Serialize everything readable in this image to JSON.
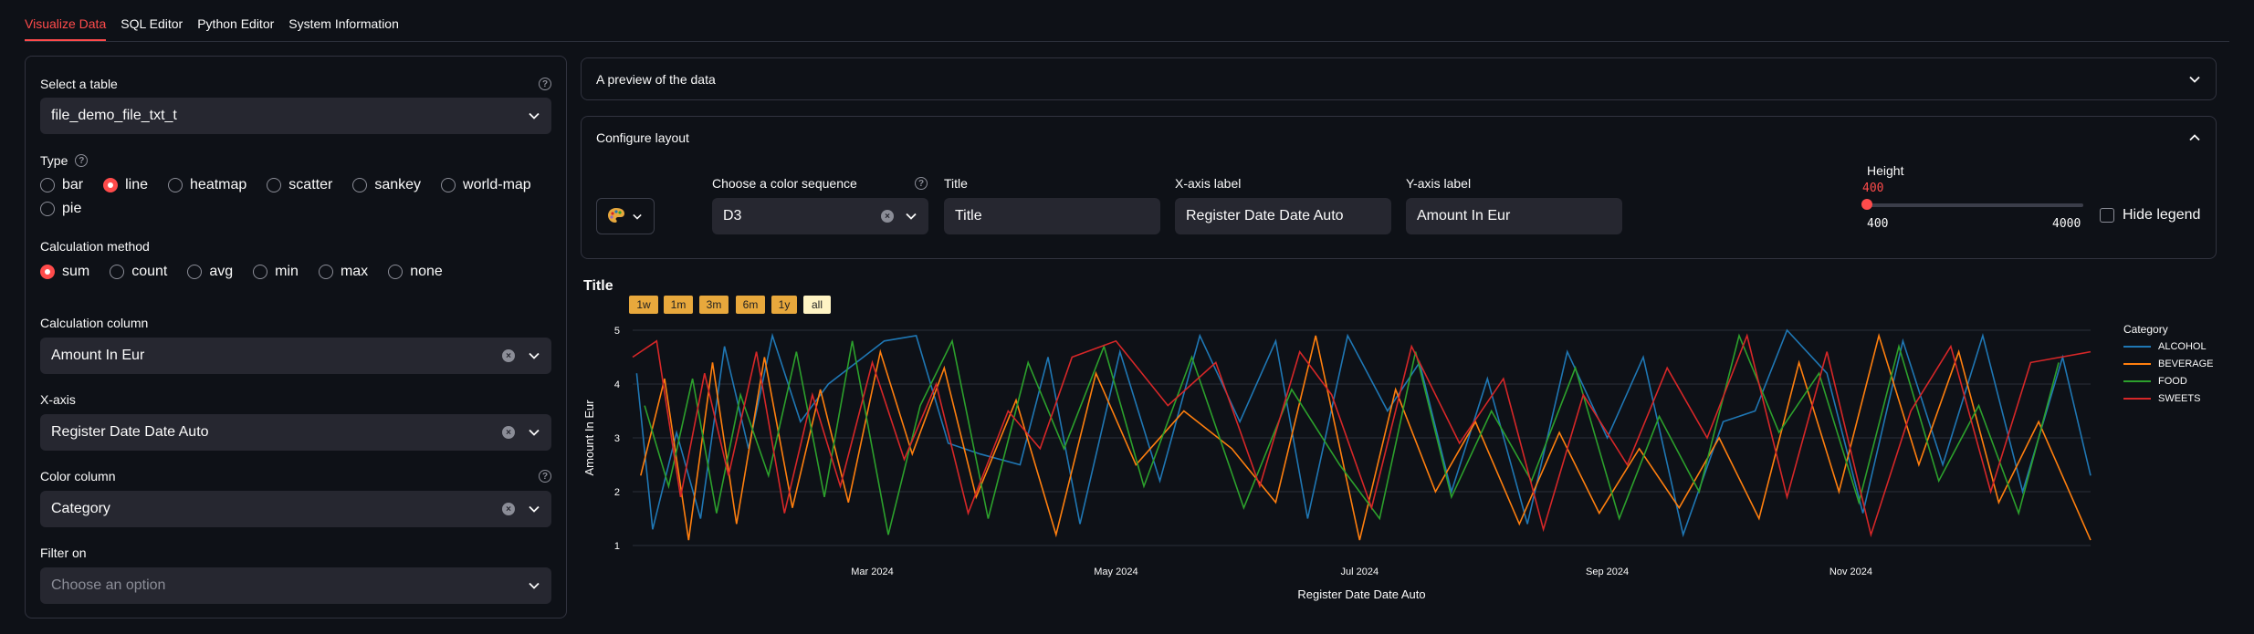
{
  "tabs": [
    {
      "label": "Visualize Data",
      "active": true
    },
    {
      "label": "SQL Editor",
      "active": false
    },
    {
      "label": "Python Editor",
      "active": false
    },
    {
      "label": "System Information",
      "active": false
    }
  ],
  "left": {
    "table": {
      "label": "Select a table",
      "value": "file_demo_file_txt_t"
    },
    "type": {
      "label": "Type",
      "options": [
        "bar",
        "line",
        "heatmap",
        "scatter",
        "sankey",
        "world-map",
        "pie"
      ],
      "selected": "line"
    },
    "calc_method": {
      "label": "Calculation method",
      "options": [
        "sum",
        "count",
        "avg",
        "min",
        "max",
        "none"
      ],
      "selected": "sum"
    },
    "calc_column": {
      "label": "Calculation column",
      "value": "Amount In Eur"
    },
    "x_axis": {
      "label": "X-axis",
      "value": "Register Date Date Auto"
    },
    "color_column": {
      "label": "Color column",
      "value": "Category"
    },
    "filter_on": {
      "label": "Filter on",
      "placeholder": "Choose an option"
    }
  },
  "preview": {
    "label": "A preview of the data"
  },
  "configure": {
    "label": "Configure layout",
    "color_seq_label": "Choose a color sequence",
    "color_seq_value": "D3",
    "title_label": "Title",
    "title_value": "Title",
    "xlabel_label": "X-axis label",
    "xlabel_value": "Register Date Date Auto",
    "ylabel_label": "Y-axis label",
    "ylabel_value": "Amount In Eur",
    "height_label": "Height",
    "height_value": "400",
    "height_min": "400",
    "height_max": "4000",
    "height_fraction": 0,
    "hide_legend_label": "Hide legend"
  },
  "chart": {
    "title": "Title",
    "range_buttons": [
      {
        "label": "1w",
        "active": false
      },
      {
        "label": "1m",
        "active": false
      },
      {
        "label": "3m",
        "active": false
      },
      {
        "label": "6m",
        "active": false
      },
      {
        "label": "1y",
        "active": false
      },
      {
        "label": "all",
        "active": true
      }
    ],
    "legend_title": "Category"
  },
  "chart_data": {
    "type": "line",
    "title": "Title",
    "xlabel": "Register Date Date Auto",
    "ylabel": "Amount In Eur",
    "x_range": [
      "2024-01-01",
      "2024-12-31"
    ],
    "ylim": [
      1,
      5
    ],
    "y_ticks": [
      1,
      2,
      3,
      4,
      5
    ],
    "x_ticks": [
      {
        "date": "2024-03-01",
        "label": "Mar 2024"
      },
      {
        "date": "2024-05-01",
        "label": "May 2024"
      },
      {
        "date": "2024-07-01",
        "label": "Jul 2024"
      },
      {
        "date": "2024-09-01",
        "label": "Sep 2024"
      },
      {
        "date": "2024-11-01",
        "label": "Nov 2024"
      }
    ],
    "legend": "right",
    "series": [
      {
        "name": "ALCOHOL",
        "color": "#1f77b4",
        "x": [
          "2024-01-02",
          "2024-01-06",
          "2024-01-12",
          "2024-01-18",
          "2024-01-24",
          "2024-01-30",
          "2024-02-05",
          "2024-02-12",
          "2024-02-19",
          "2024-02-26",
          "2024-03-04",
          "2024-03-12",
          "2024-03-20",
          "2024-03-28",
          "2024-04-07",
          "2024-04-14",
          "2024-04-22",
          "2024-05-02",
          "2024-05-12",
          "2024-05-22",
          "2024-06-01",
          "2024-06-10",
          "2024-06-18",
          "2024-06-28",
          "2024-07-08",
          "2024-07-16",
          "2024-07-24",
          "2024-08-02",
          "2024-08-12",
          "2024-08-22",
          "2024-09-01",
          "2024-09-10",
          "2024-09-20",
          "2024-09-30",
          "2024-10-08",
          "2024-10-16",
          "2024-10-26",
          "2024-11-04",
          "2024-11-14",
          "2024-11-24",
          "2024-12-04",
          "2024-12-14",
          "2024-12-24",
          "2024-12-31"
        ],
        "values": [
          4.2,
          1.3,
          3.1,
          1.5,
          4.7,
          2.8,
          4.9,
          3.3,
          4.0,
          4.4,
          4.8,
          4.9,
          2.9,
          2.7,
          2.5,
          4.5,
          1.4,
          4.6,
          2.2,
          4.9,
          3.3,
          4.8,
          1.5,
          4.9,
          3.5,
          4.4,
          2.0,
          4.1,
          1.4,
          4.6,
          3.0,
          4.5,
          1.2,
          3.3,
          3.5,
          5.0,
          4.2,
          1.6,
          4.8,
          2.5,
          4.9,
          2.0,
          4.5,
          2.3
        ]
      },
      {
        "name": "BEVERAGE",
        "color": "#ff7f0e",
        "x": [
          "2024-01-03",
          "2024-01-09",
          "2024-01-15",
          "2024-01-21",
          "2024-01-27",
          "2024-02-03",
          "2024-02-10",
          "2024-02-17",
          "2024-02-24",
          "2024-03-03",
          "2024-03-11",
          "2024-03-19",
          "2024-03-27",
          "2024-04-06",
          "2024-04-16",
          "2024-04-26",
          "2024-05-06",
          "2024-05-18",
          "2024-05-30",
          "2024-06-10",
          "2024-06-20",
          "2024-07-01",
          "2024-07-10",
          "2024-07-20",
          "2024-07-30",
          "2024-08-10",
          "2024-08-20",
          "2024-08-30",
          "2024-09-09",
          "2024-09-19",
          "2024-09-29",
          "2024-10-09",
          "2024-10-19",
          "2024-10-29",
          "2024-11-08",
          "2024-11-18",
          "2024-11-28",
          "2024-12-08",
          "2024-12-18",
          "2024-12-31"
        ],
        "values": [
          2.3,
          4.1,
          1.1,
          4.4,
          1.4,
          4.5,
          1.7,
          3.9,
          1.8,
          4.6,
          2.7,
          4.3,
          1.9,
          3.7,
          1.2,
          4.2,
          2.5,
          3.5,
          2.8,
          1.8,
          4.9,
          1.1,
          3.9,
          2.0,
          3.3,
          1.4,
          3.1,
          1.6,
          2.8,
          1.7,
          3.0,
          1.5,
          4.4,
          2.0,
          4.9,
          2.5,
          4.6,
          1.8,
          3.3,
          1.1
        ]
      },
      {
        "name": "FOOD",
        "color": "#2ca02c",
        "x": [
          "2024-01-04",
          "2024-01-10",
          "2024-01-16",
          "2024-01-22",
          "2024-01-28",
          "2024-02-04",
          "2024-02-11",
          "2024-02-18",
          "2024-02-25",
          "2024-03-05",
          "2024-03-13",
          "2024-03-21",
          "2024-03-30",
          "2024-04-09",
          "2024-04-18",
          "2024-04-28",
          "2024-05-08",
          "2024-05-20",
          "2024-06-02",
          "2024-06-14",
          "2024-06-26",
          "2024-07-06",
          "2024-07-15",
          "2024-07-24",
          "2024-08-03",
          "2024-08-13",
          "2024-08-24",
          "2024-09-04",
          "2024-09-14",
          "2024-09-24",
          "2024-10-04",
          "2024-10-14",
          "2024-10-24",
          "2024-11-03",
          "2024-11-13",
          "2024-11-23",
          "2024-12-03",
          "2024-12-13",
          "2024-12-23"
        ],
        "values": [
          3.6,
          2.1,
          4.1,
          1.6,
          3.8,
          2.3,
          4.6,
          1.9,
          4.8,
          1.2,
          3.6,
          4.8,
          1.5,
          4.4,
          2.8,
          4.7,
          2.1,
          4.5,
          1.7,
          3.9,
          2.5,
          1.5,
          4.6,
          1.9,
          3.5,
          2.2,
          4.3,
          1.5,
          3.4,
          2.0,
          4.9,
          3.1,
          4.2,
          1.8,
          4.7,
          2.2,
          3.6,
          1.6,
          4.4
        ]
      },
      {
        "name": "SWEETS",
        "color": "#d62728",
        "x": [
          "2024-01-01",
          "2024-01-07",
          "2024-01-13",
          "2024-01-19",
          "2024-01-25",
          "2024-02-01",
          "2024-02-08",
          "2024-02-15",
          "2024-02-22",
          "2024-03-01",
          "2024-03-09",
          "2024-03-17",
          "2024-03-25",
          "2024-04-04",
          "2024-04-12",
          "2024-04-20",
          "2024-05-01",
          "2024-05-14",
          "2024-05-26",
          "2024-06-06",
          "2024-06-16",
          "2024-06-24",
          "2024-07-04",
          "2024-07-14",
          "2024-07-26",
          "2024-08-06",
          "2024-08-16",
          "2024-08-26",
          "2024-09-06",
          "2024-09-16",
          "2024-09-26",
          "2024-10-06",
          "2024-10-16",
          "2024-10-26",
          "2024-11-06",
          "2024-11-16",
          "2024-11-26",
          "2024-12-06",
          "2024-12-16",
          "2024-12-31"
        ],
        "values": [
          4.5,
          4.8,
          1.9,
          4.2,
          2.3,
          4.6,
          1.6,
          3.8,
          2.1,
          4.4,
          2.6,
          4.0,
          1.6,
          3.5,
          2.8,
          4.5,
          4.8,
          3.6,
          4.4,
          2.1,
          4.6,
          3.8,
          1.7,
          4.7,
          2.9,
          4.1,
          1.3,
          3.8,
          2.5,
          4.3,
          3.0,
          4.9,
          1.9,
          4.6,
          1.2,
          3.5,
          4.7,
          2.0,
          4.4,
          4.6
        ]
      }
    ]
  }
}
